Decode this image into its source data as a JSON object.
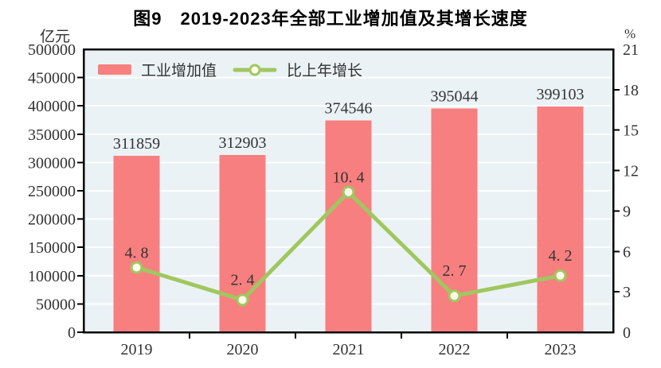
{
  "chart_data": {
    "type": "bar",
    "title": "图9　2019-2023年全部工业增加值及其增长速度",
    "categories": [
      "2019",
      "2020",
      "2021",
      "2022",
      "2023"
    ],
    "series": [
      {
        "name": "工业增加值",
        "type": "bar",
        "axis": "left",
        "unit": "亿元",
        "values": [
          311859,
          312903,
          374546,
          395044,
          399103
        ],
        "labels": [
          "311859",
          "312903",
          "374546",
          "395044",
          "399103"
        ]
      },
      {
        "name": "比上年增长",
        "type": "line",
        "axis": "right",
        "unit": "%",
        "values": [
          4.8,
          2.4,
          10.4,
          2.7,
          4.2
        ],
        "labels": [
          "4. 8",
          "2. 4",
          "10. 4",
          "2. 7",
          "4. 2"
        ],
        "label_dy": [
          12,
          19,
          12,
          25,
          19
        ]
      }
    ],
    "left_axis": {
      "unit": "亿元",
      "min": 0,
      "max": 500000,
      "step": 50000,
      "ticks": [
        "500000",
        "450000",
        "400000",
        "350000",
        "300000",
        "250000",
        "200000",
        "150000",
        "100000",
        "50000",
        "0"
      ]
    },
    "right_axis": {
      "unit": "%",
      "min": 0,
      "max": 21,
      "step": 3,
      "ticks": [
        "21",
        "18",
        "15",
        "12",
        "9",
        "6",
        "3",
        "0"
      ]
    },
    "legend": [
      {
        "label": "工业增加值",
        "swatch": "bar"
      },
      {
        "label": "比上年增长",
        "swatch": "line"
      }
    ],
    "legend_position": "top-left-inside",
    "grid": true,
    "colors": {
      "bar": "#F87F7F",
      "line": "#A0C75F",
      "marker_fill": "#FDFFEC",
      "plot_bg": "#EAF2F5",
      "gridline": "#FFFFFF",
      "axis": "#000000",
      "label": "#333333",
      "title": "#000000"
    }
  }
}
